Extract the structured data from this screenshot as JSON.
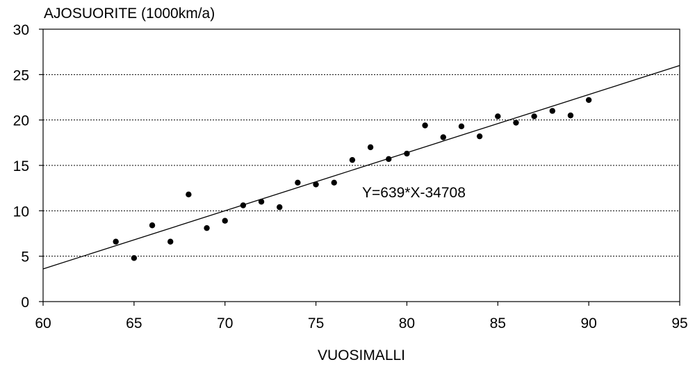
{
  "chart_data": {
    "type": "scatter",
    "ylabel": "AJOSUORITE (1000km/a)",
    "xlabel": "VUOSIMALLI",
    "xlim": [
      60,
      95
    ],
    "ylim": [
      0,
      30
    ],
    "x_ticks": [
      60,
      65,
      70,
      75,
      80,
      85,
      90,
      95
    ],
    "y_ticks": [
      0,
      5,
      10,
      15,
      20,
      25,
      30
    ],
    "grid": "horizontal dotted",
    "points": [
      {
        "x": 64,
        "y": 6.6
      },
      {
        "x": 65,
        "y": 4.8
      },
      {
        "x": 66,
        "y": 8.4
      },
      {
        "x": 67,
        "y": 6.6
      },
      {
        "x": 68,
        "y": 11.8
      },
      {
        "x": 69,
        "y": 8.1
      },
      {
        "x": 70,
        "y": 8.9
      },
      {
        "x": 71,
        "y": 10.6
      },
      {
        "x": 72,
        "y": 11.0
      },
      {
        "x": 73,
        "y": 10.4
      },
      {
        "x": 74,
        "y": 13.1
      },
      {
        "x": 75,
        "y": 12.9
      },
      {
        "x": 76,
        "y": 13.1
      },
      {
        "x": 77,
        "y": 15.6
      },
      {
        "x": 78,
        "y": 17.0
      },
      {
        "x": 79,
        "y": 15.7
      },
      {
        "x": 80,
        "y": 16.3
      },
      {
        "x": 81,
        "y": 19.4
      },
      {
        "x": 82,
        "y": 18.1
      },
      {
        "x": 83,
        "y": 19.3
      },
      {
        "x": 84,
        "y": 18.2
      },
      {
        "x": 85,
        "y": 20.4
      },
      {
        "x": 86,
        "y": 19.7
      },
      {
        "x": 87,
        "y": 20.4
      },
      {
        "x": 88,
        "y": 21.0
      },
      {
        "x": 89,
        "y": 20.5
      },
      {
        "x": 90,
        "y": 22.2
      }
    ],
    "trendline": {
      "label": "Y=639*X-34708",
      "start": {
        "x": 60,
        "y": 3.6
      },
      "end": {
        "x": 95,
        "y": 26.0
      }
    }
  }
}
